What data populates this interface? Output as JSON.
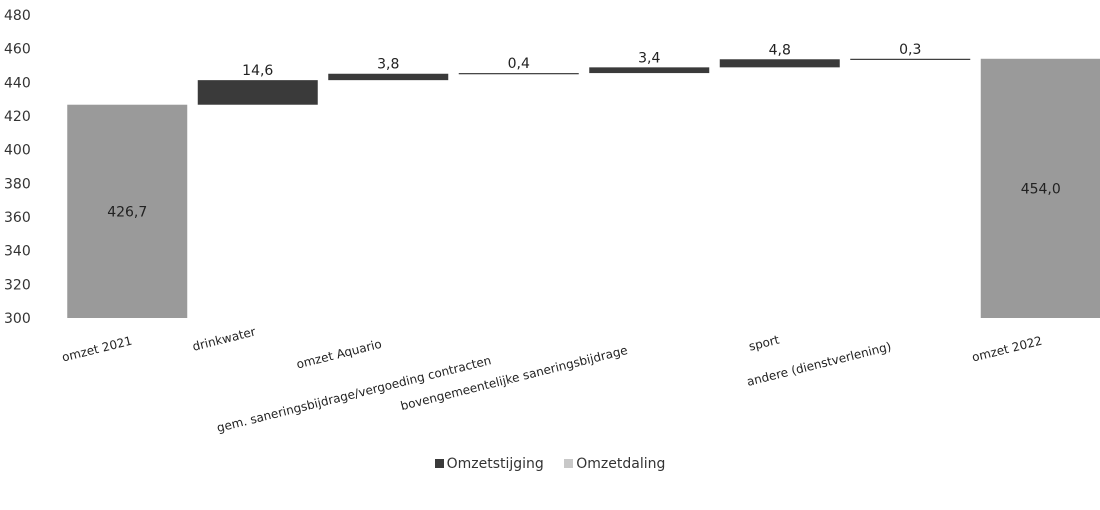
{
  "chart_data": {
    "type": "bar",
    "subtype": "waterfall",
    "title": "",
    "xlabel": "",
    "ylabel": "",
    "ylim": [
      300,
      480
    ],
    "yticks": [
      300,
      320,
      340,
      360,
      380,
      400,
      420,
      440,
      460,
      480
    ],
    "grid": false,
    "legend_position": "bottom",
    "categories": [
      "omzet 2021",
      "drinkwater",
      "omzet Aquario",
      "gem. saneringsbijdrage/vergoeding contracten",
      "bovengemeentelijke saneringsbijdrage",
      "sport",
      "andere (dienstverlening)",
      "omzet 2022"
    ],
    "values": [
      426.7,
      14.6,
      3.8,
      0.4,
      3.4,
      4.8,
      0.3,
      454.0
    ],
    "kinds": [
      "total",
      "increase",
      "increase",
      "increase",
      "increase",
      "increase",
      "increase",
      "total"
    ],
    "data_labels": [
      "426,7",
      "14,6",
      "3,8",
      "0,4",
      "3,4",
      "4,8",
      "0,3",
      "454,0"
    ],
    "series": [
      {
        "name": "Omzetstijging",
        "color": "#3a3a3a"
      },
      {
        "name": "Omzetdaling",
        "color": "#a8a8a8"
      }
    ],
    "total_color": "#9a9a9a"
  }
}
